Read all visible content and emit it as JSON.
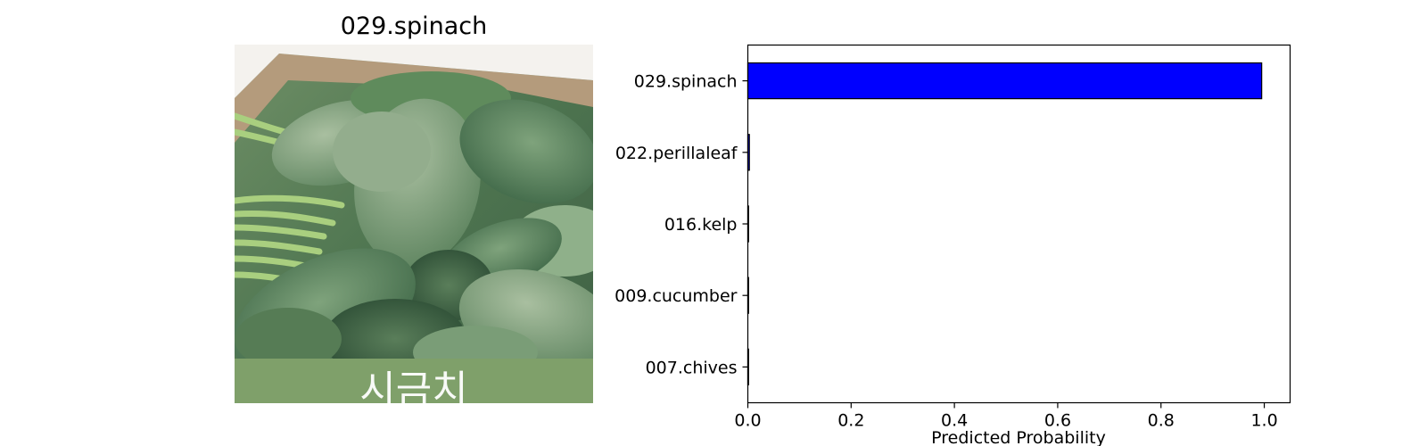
{
  "image_panel": {
    "title": "029.spinach",
    "overlay_text": "시금치"
  },
  "colors": {
    "bar": "#0000ff",
    "bar_edge": "#000000",
    "axes": "#000000"
  },
  "chart_data": {
    "type": "bar",
    "orientation": "horizontal",
    "categories": [
      "029.spinach",
      "022.perillaleaf",
      "016.kelp",
      "009.cucumber",
      "007.chives"
    ],
    "values": [
      0.995,
      0.003,
      0.0005,
      0.0005,
      0.0003
    ],
    "xlabel": "Predicted Probability",
    "ylabel": "",
    "xlim": [
      0,
      1.05
    ],
    "xticks": [
      "0.0",
      "0.2",
      "0.4",
      "0.6",
      "0.8",
      "1.0"
    ],
    "grid": false
  }
}
